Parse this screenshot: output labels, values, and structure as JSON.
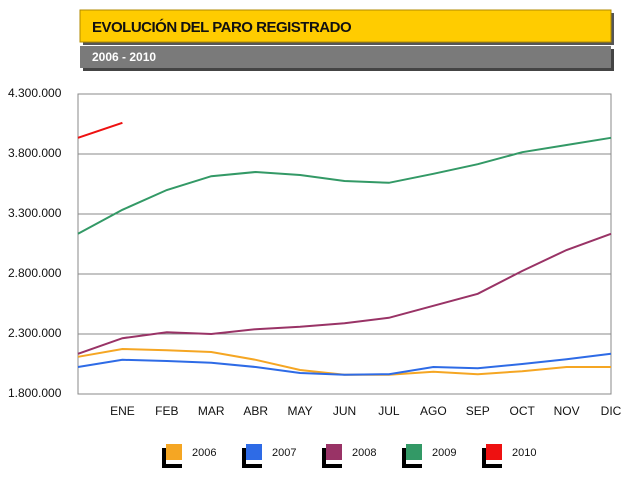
{
  "chart_data": {
    "type": "line",
    "title": "EVOLUCIÓN DEL PARO REGISTRADO",
    "subtitle": "2006 - 2010",
    "categories": [
      null,
      "ENE",
      "FEB",
      "MAR",
      "ABR",
      "MAY",
      "JUN",
      "JUL",
      "AGO",
      "SEP",
      "OCT",
      "NOV",
      "DIC"
    ],
    "ylim": [
      1800000,
      4300000
    ],
    "yticks": [
      {
        "value": 1800000,
        "label": "1.800.000"
      },
      {
        "value": 2300000,
        "label": "2.300.000"
      },
      {
        "value": 2800000,
        "label": "2.800.000"
      },
      {
        "value": 3300000,
        "label": "3.300.000"
      },
      {
        "value": 3800000,
        "label": "3.800.000"
      },
      {
        "value": 4300000,
        "label": "4.300.000"
      }
    ],
    "grid": true,
    "legend": "bottom",
    "series": [
      {
        "name": "2006",
        "color": "#f5a623",
        "values": [
          2110000,
          2175000,
          2165000,
          2150000,
          2085000,
          2000000,
          1960000,
          1960000,
          1985000,
          1965000,
          1990000,
          2025000,
          2025000
        ]
      },
      {
        "name": "2007",
        "color": "#2e6be6",
        "values": [
          2025000,
          2085000,
          2075000,
          2060000,
          2025000,
          1975000,
          1960000,
          1965000,
          2025000,
          2015000,
          2050000,
          2090000,
          2135000
        ]
      },
      {
        "name": "2008",
        "color": "#993366",
        "values": [
          2135000,
          2265000,
          2315000,
          2300000,
          2340000,
          2360000,
          2390000,
          2435000,
          2535000,
          2635000,
          2825000,
          3000000,
          3135000
        ]
      },
      {
        "name": "2009",
        "color": "#339966",
        "values": [
          3135000,
          3335000,
          3500000,
          3615000,
          3650000,
          3625000,
          3575000,
          3560000,
          3635000,
          3715000,
          3815000,
          3875000,
          3935000
        ]
      },
      {
        "name": "2010",
        "color": "#ee1111",
        "values": [
          3935000,
          4060000,
          null,
          null,
          null,
          null,
          null,
          null,
          null,
          null,
          null,
          null,
          null
        ]
      }
    ]
  }
}
